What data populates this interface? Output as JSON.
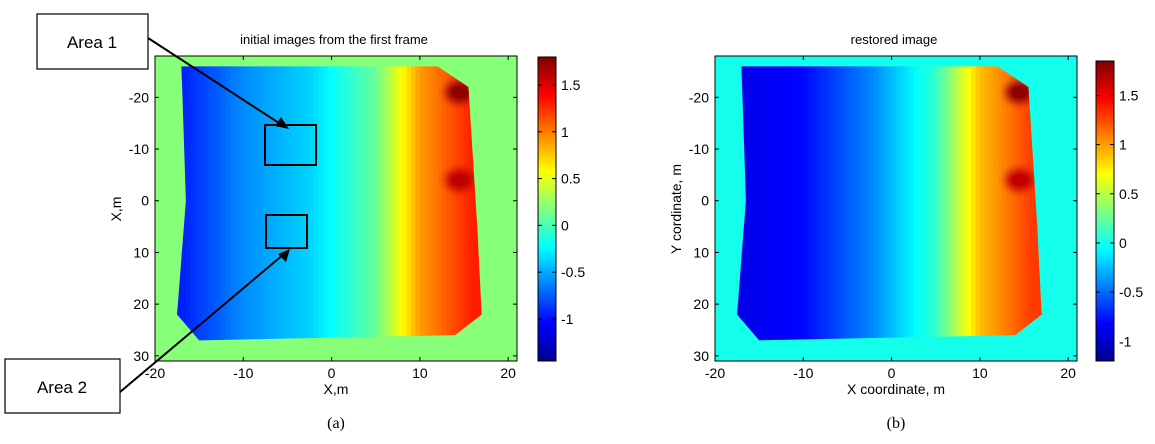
{
  "chart_data": [
    {
      "type": "heatmap",
      "title": "initial images from the first frame",
      "xlabel": "X,m",
      "ylabel": "X,m",
      "caption": "(a)",
      "xlim": [
        -20,
        21
      ],
      "ylim": [
        -28,
        31
      ],
      "y_reversed": true,
      "x_ticks": [
        -20,
        -10,
        0,
        10,
        20
      ],
      "y_ticks": [
        -20,
        -10,
        0,
        10,
        20,
        30
      ],
      "colorbar": {
        "min": -1.45,
        "max": 1.8,
        "ticks": [
          -1,
          -0.5,
          0,
          0.5,
          1,
          1.5
        ],
        "colormap": "jet"
      },
      "background_value": 0.2,
      "field_trend": {
        "x": [
          -18,
          -10,
          -2,
          5,
          10,
          16
        ],
        "value": [
          -1.0,
          -0.6,
          -0.35,
          0.1,
          0.9,
          1.3
        ]
      },
      "hot_spots": [
        {
          "x": 14.5,
          "y": -21,
          "value": 1.75
        },
        {
          "x": 14.5,
          "y": -4,
          "value": 1.6
        }
      ],
      "annotations": [
        {
          "text": "Area 1",
          "x": -5,
          "y": -11.5
        },
        {
          "text": "Area 2",
          "x": -5,
          "y": 5.5
        }
      ],
      "boxes": [
        {
          "x": [
            -8,
            -2
          ],
          "y": [
            -16,
            -7
          ]
        },
        {
          "x": [
            -8,
            -3
          ],
          "y": [
            2,
            9
          ]
        }
      ]
    },
    {
      "type": "heatmap",
      "title": "restored image",
      "xlabel": "X coordinate, m",
      "ylabel": "Y cordinate, m",
      "caption": "(b)",
      "xlim": [
        -20,
        21
      ],
      "ylim": [
        -28,
        31
      ],
      "y_reversed": true,
      "x_ticks": [
        -20,
        -10,
        0,
        10,
        20
      ],
      "y_ticks": [
        -20,
        -10,
        0,
        10,
        20,
        30
      ],
      "colorbar": {
        "min": -1.2,
        "max": 1.85,
        "ticks": [
          -1,
          -0.5,
          0,
          0.5,
          1,
          1.5
        ],
        "colormap": "jet"
      },
      "background_value": 0.0,
      "field_trend": {
        "x": [
          -18,
          -10,
          -2,
          5,
          10,
          16
        ],
        "value": [
          -0.9,
          -0.8,
          -0.4,
          0.1,
          0.9,
          1.3
        ]
      },
      "hot_spots": [
        {
          "x": 14.5,
          "y": -21,
          "value": 1.8
        },
        {
          "x": 14.5,
          "y": -4,
          "value": 1.65
        }
      ],
      "annotations": [],
      "boxes": []
    }
  ]
}
